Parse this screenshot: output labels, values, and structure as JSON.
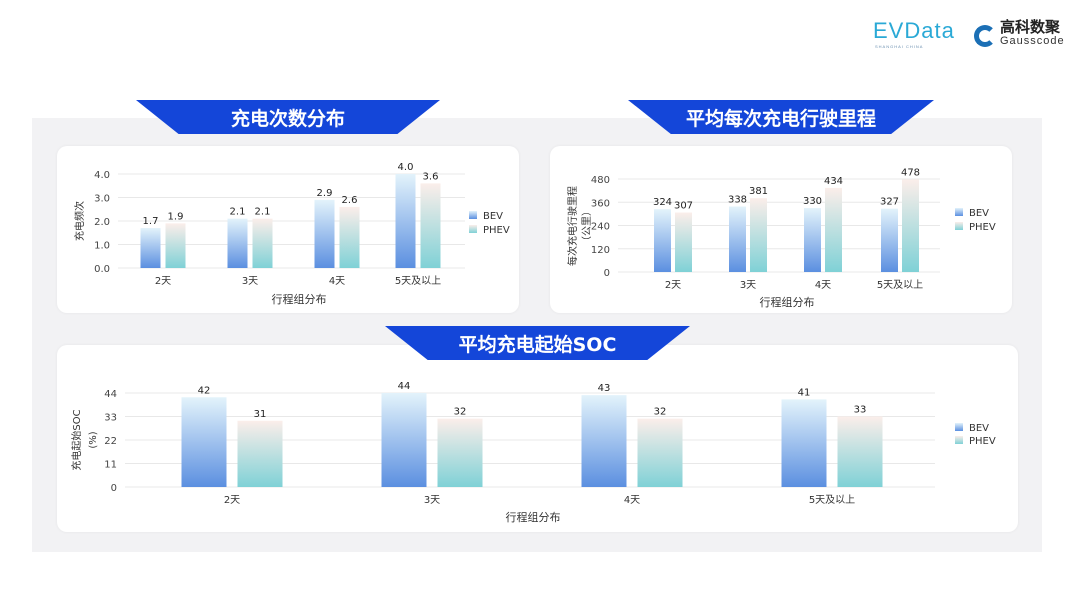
{
  "logos": {
    "evdata": "EVData",
    "evdata_sub": "SHANGHAI CHINA",
    "gauss_cn": "高科数聚",
    "gauss_en": "Gausscode"
  },
  "colors": {
    "banner": "#1446d9",
    "bev_top": "#e3f3fb",
    "bev_bottom": "#5b8fe0",
    "phev_top": "#fbeeea",
    "phev_bottom": "#7fd1d6",
    "panel": "#f2f2f4"
  },
  "chart_data": [
    {
      "type": "bar",
      "title": "充电次数分布",
      "categories": [
        "2天",
        "3天",
        "4天",
        "5天及以上"
      ],
      "series": [
        {
          "name": "BEV",
          "values": [
            1.7,
            2.1,
            2.9,
            4.0
          ]
        },
        {
          "name": "PHEV",
          "values": [
            1.9,
            2.1,
            2.6,
            3.6
          ]
        }
      ],
      "ylabel": "充电频次",
      "xlabel": "行程组分布",
      "ylim": [
        0,
        4
      ],
      "yticks": [
        "0.0",
        "1.0",
        "2.0",
        "3.0",
        "4.0"
      ],
      "decimals": 1,
      "grid": true,
      "legend": "right"
    },
    {
      "type": "bar",
      "title": "平均每次充电行驶里程",
      "categories": [
        "2天",
        "3天",
        "4天",
        "5天及以上"
      ],
      "series": [
        {
          "name": "BEV",
          "values": [
            324,
            338,
            330,
            327
          ]
        },
        {
          "name": "PHEV",
          "values": [
            307,
            381,
            434,
            478
          ]
        }
      ],
      "ylabel": "每次充电行驶里程",
      "ylabel2": "（公里）",
      "xlabel": "行程组分布",
      "ylim": [
        0,
        480
      ],
      "yticks": [
        "0",
        "120",
        "240",
        "360",
        "480"
      ],
      "decimals": 0,
      "grid": true,
      "legend": "right"
    },
    {
      "type": "bar",
      "title": "平均充电起始SOC",
      "categories": [
        "2天",
        "3天",
        "4天",
        "5天及以上"
      ],
      "series": [
        {
          "name": "BEV",
          "values": [
            42,
            44,
            43,
            41
          ]
        },
        {
          "name": "PHEV",
          "values": [
            31,
            32,
            32,
            33
          ]
        }
      ],
      "ylabel": "充电起始SOC",
      "ylabel2": "(%)",
      "xlabel": "行程组分布",
      "ylim": [
        0,
        44
      ],
      "yticks": [
        "0",
        "11",
        "22",
        "33",
        "44"
      ],
      "decimals": 0,
      "grid": true,
      "legend": "right"
    }
  ]
}
